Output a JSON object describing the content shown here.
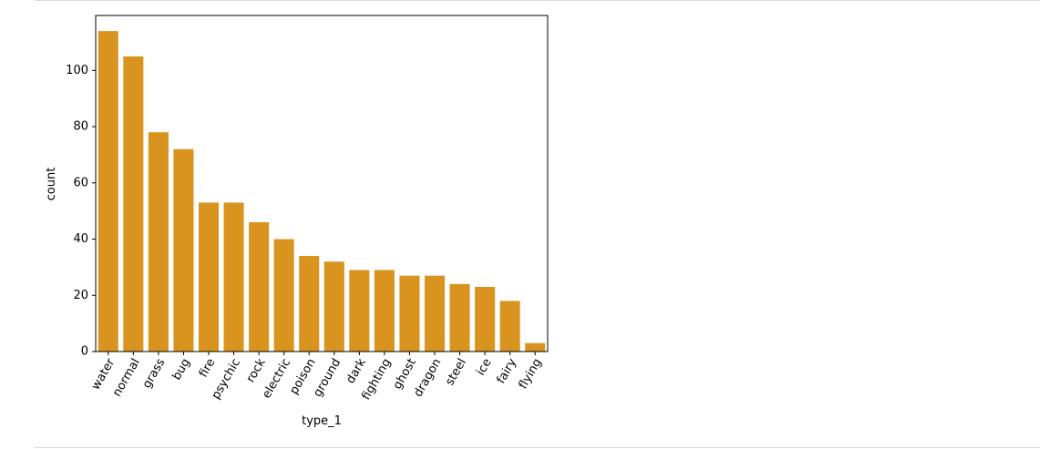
{
  "chart_data": {
    "type": "bar",
    "title": "",
    "xlabel": "type_1",
    "ylabel": "count",
    "categories": [
      "water",
      "normal",
      "grass",
      "bug",
      "fire",
      "psychic",
      "rock",
      "electric",
      "poison",
      "ground",
      "dark",
      "fighting",
      "ghost",
      "dragon",
      "steel",
      "ice",
      "fairy",
      "flying"
    ],
    "values": [
      114,
      105,
      78,
      72,
      53,
      53,
      46,
      40,
      34,
      32,
      29,
      29,
      27,
      27,
      24,
      23,
      18,
      3
    ],
    "ylim": [
      0,
      119.55
    ],
    "yticks": [
      0,
      20,
      40,
      60,
      80,
      100
    ],
    "grid": false,
    "bar_color": "#d8941f"
  }
}
